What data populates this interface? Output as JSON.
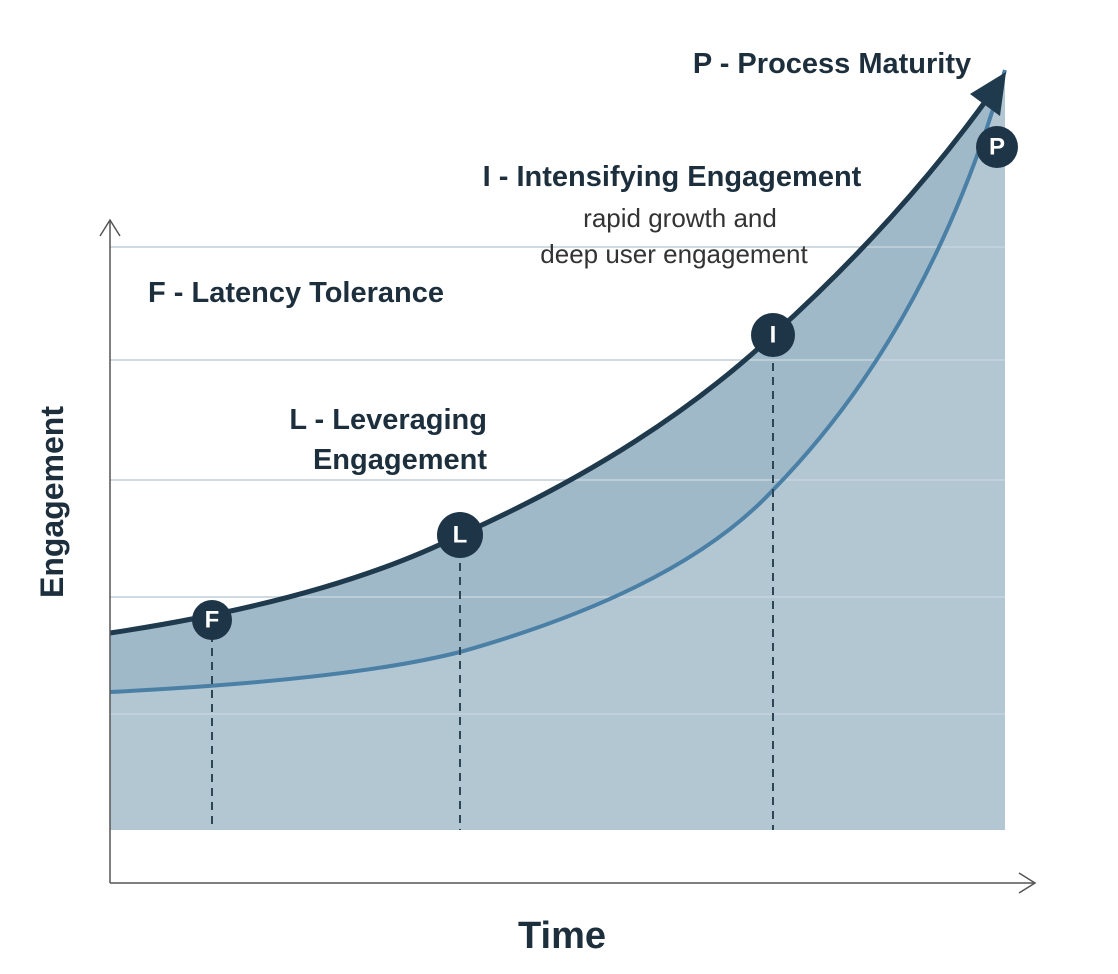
{
  "axes": {
    "x_label": "Time",
    "y_label": "Engagement"
  },
  "stages": [
    {
      "marker": "F",
      "label_lines": [
        "F - Latency Tolerance"
      ]
    },
    {
      "marker": "L",
      "label_lines": [
        "L - Leveraging",
        "Engagement"
      ]
    },
    {
      "marker": "I",
      "label_lines": [
        "I - Intensifying Engagement"
      ],
      "description_lines": [
        "rapid growth and",
        "deep user engagement"
      ]
    },
    {
      "marker": "P",
      "label_lines": [
        "P - Process Maturity"
      ]
    }
  ]
}
